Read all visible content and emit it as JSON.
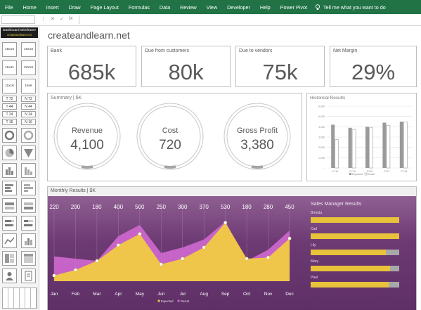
{
  "ribbon": {
    "tabs": [
      "File",
      "Home",
      "Insert",
      "Draw",
      "Page Layout",
      "Formulas",
      "Data",
      "Review",
      "View",
      "Developer",
      "Help",
      "Power Pivot"
    ],
    "tell_me": "Tell me what you want to do"
  },
  "formula_bar": {
    "cancel": "✕",
    "enter": "✓",
    "fx": "fx"
  },
  "panel": {
    "title": "Dashboard Wireframe",
    "brand": "createandlearn.net",
    "buttons": [
      "16x16",
      "16x16",
      "16x11",
      "23x16",
      "11x16",
      "16x8",
      "T 72",
      "N 72",
      "T 44",
      "N 44",
      "T 24",
      "N 24",
      "T 16",
      "N 16"
    ]
  },
  "dashboard": {
    "site": "createandlearn.net",
    "kpis": [
      {
        "label": "Bank",
        "value": "685k"
      },
      {
        "label": "Due from customers",
        "value": "80k"
      },
      {
        "label": "Due to vendors",
        "value": "75k"
      },
      {
        "label": "Net Margin",
        "value": "29%"
      }
    ],
    "summary": {
      "label": "Summary | $K",
      "rings": [
        {
          "title": "Revenue",
          "value": "4,100"
        },
        {
          "title": "Cost",
          "value": "720"
        },
        {
          "title": "Gross Profit",
          "value": "3,380"
        }
      ]
    },
    "historical": {
      "label": "Historical Results"
    },
    "monthly": {
      "label": "Monthly Results | $K"
    },
    "sales_manager": {
      "title": "Sales Manager Results",
      "managers": [
        {
          "name": "Brenda",
          "pct": 1.0
        },
        {
          "name": "Carl",
          "pct": 1.0
        },
        {
          "name": "Lily",
          "pct": 0.85
        },
        {
          "name": "Mary",
          "pct": 0.9
        },
        {
          "name": "Paul",
          "pct": 0.88
        }
      ]
    }
  },
  "colors": {
    "excel_green": "#217346",
    "purple": "#6d3a73",
    "gold": "#e8c23a",
    "magenta": "#cc66cc",
    "grey_text": "#595959"
  },
  "chart_data": [
    {
      "type": "bar",
      "title": "Historical Results",
      "categories": [
        "FY14",
        "FY15",
        "FY16",
        "FY17",
        "FY18"
      ],
      "series": [
        {
          "name": "Expected",
          "values": [
            4200,
            3900,
            4000,
            4400,
            4500
          ]
        },
        {
          "name": "Result",
          "values": [
            2750,
            3750,
            3900,
            4150,
            4450
          ]
        }
      ],
      "ylim": [
        0,
        6000
      ],
      "yticks": [
        "6,000",
        "5,000",
        "4,000",
        "3,000",
        "2,000",
        "1,000",
        "-"
      ],
      "legend": "bottom"
    },
    {
      "type": "area",
      "title": "Monthly Results | $K",
      "categories": [
        "Jan",
        "Feb",
        "Mar",
        "Apr",
        "May",
        "Jun",
        "Jul",
        "Aug",
        "Sep",
        "Oct",
        "Nov",
        "Dec"
      ],
      "top_labels": [
        "220",
        "200",
        "180",
        "400",
        "500",
        "250",
        "300",
        "370",
        "530",
        "180",
        "280",
        "450"
      ],
      "series": [
        {
          "name": "Expected",
          "values": [
            220,
            200,
            180,
            400,
            500,
            250,
            300,
            370,
            530,
            180,
            280,
            450
          ]
        },
        {
          "name": "Result",
          "values": [
            50,
            100,
            180,
            320,
            420,
            150,
            200,
            300,
            520,
            200,
            210,
            380
          ]
        }
      ],
      "ylim": [
        0,
        600
      ],
      "legend": "bottom"
    }
  ]
}
